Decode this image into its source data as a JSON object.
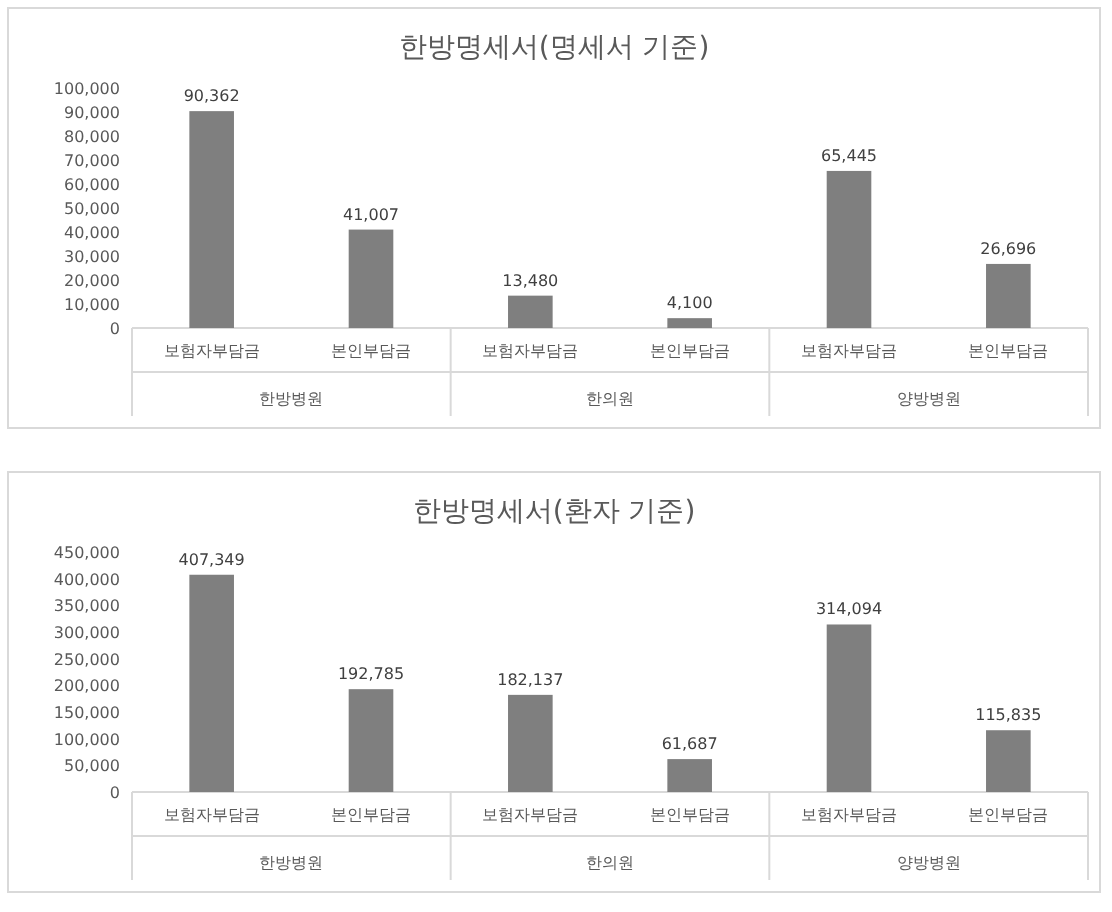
{
  "chart_data": [
    {
      "type": "bar",
      "title": "한방명세서(명세서 기준)",
      "categories": [
        "보험자부담금",
        "본인부담금",
        "보험자부담금",
        "본인부담금",
        "보험자부담금",
        "본인부담금"
      ],
      "values": [
        90362,
        41007,
        13480,
        4100,
        65445,
        26696
      ],
      "value_labels": [
        "90,362",
        "41,007",
        "13,480",
        "4,100",
        "65,445",
        "26,696"
      ],
      "color": "#7f7f7f",
      "ylim": [
        0,
        100000
      ],
      "yticks": [
        {
          "value": 0,
          "label": "0"
        },
        {
          "value": 10000,
          "label": "10,000"
        },
        {
          "value": 20000,
          "label": "20,000"
        },
        {
          "value": 30000,
          "label": "30,000"
        },
        {
          "value": 40000,
          "label": "40,000"
        },
        {
          "value": 50000,
          "label": "50,000"
        },
        {
          "value": 60000,
          "label": "60,000"
        },
        {
          "value": 70000,
          "label": "70,000"
        },
        {
          "value": 80000,
          "label": "80,000"
        },
        {
          "value": 90000,
          "label": "90,000"
        },
        {
          "value": 100000,
          "label": "100,000"
        }
      ],
      "annotations": [
        "한방병원",
        "한의원",
        "양방병원"
      ]
    },
    {
      "type": "bar",
      "title": "한방명세서(환자 기준)",
      "categories": [
        "보험자부담금",
        "본인부담금",
        "보험자부담금",
        "본인부담금",
        "보험자부담금",
        "본인부담금"
      ],
      "values": [
        407349,
        192785,
        182137,
        61687,
        314094,
        115835
      ],
      "value_labels": [
        "407,349",
        "192,785",
        "182,137",
        "61,687",
        "314,094",
        "115,835"
      ],
      "color": "#7f7f7f",
      "ylim": [
        0,
        450000
      ],
      "yticks": [
        {
          "value": 0,
          "label": "0"
        },
        {
          "value": 50000,
          "label": "50,000"
        },
        {
          "value": 100000,
          "label": "100,000"
        },
        {
          "value": 150000,
          "label": "150,000"
        },
        {
          "value": 200000,
          "label": "200,000"
        },
        {
          "value": 250000,
          "label": "250,000"
        },
        {
          "value": 300000,
          "label": "300,000"
        },
        {
          "value": 350000,
          "label": "350,000"
        },
        {
          "value": 400000,
          "label": "400,000"
        },
        {
          "value": 450000,
          "label": "450,000"
        }
      ],
      "annotations": [
        "한방병원",
        "한의원",
        "양방병원"
      ]
    }
  ]
}
